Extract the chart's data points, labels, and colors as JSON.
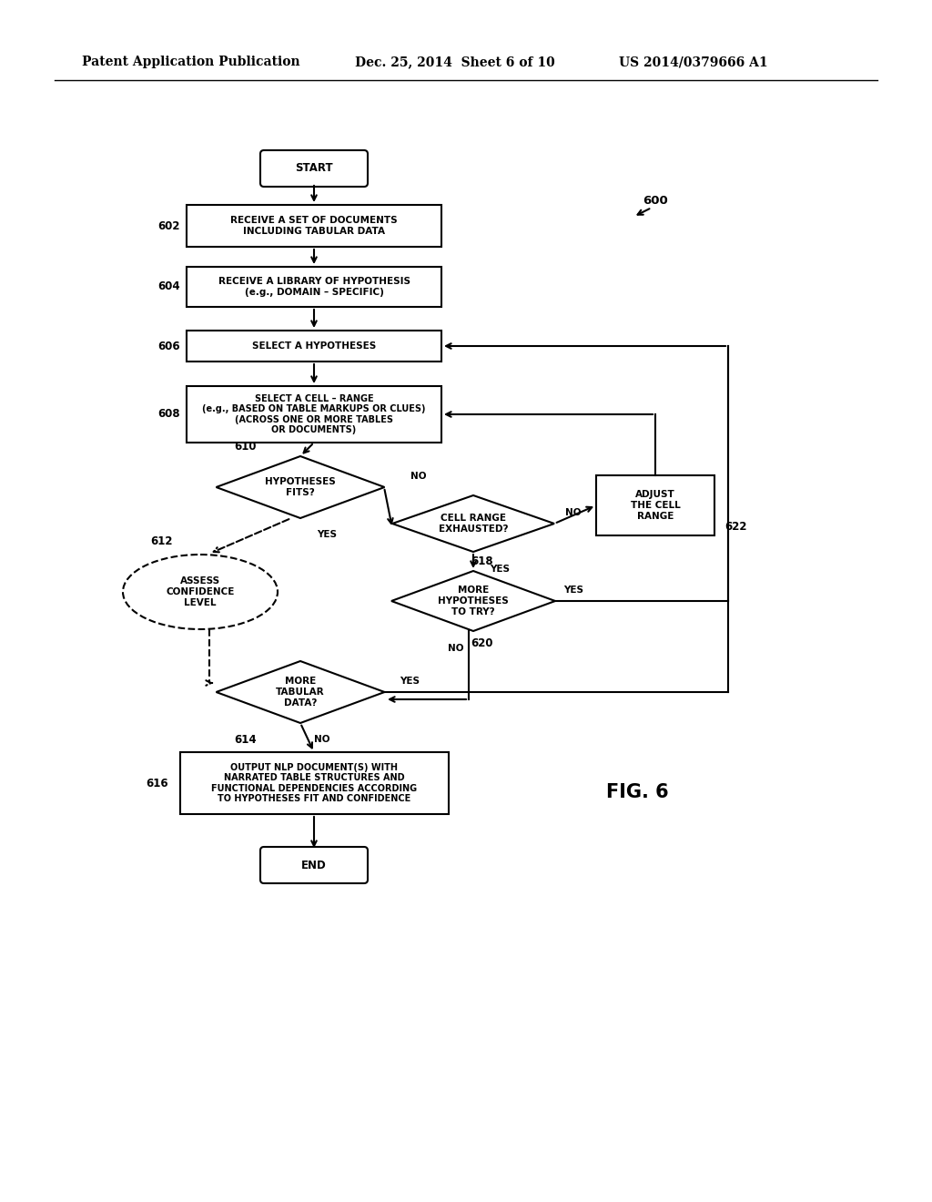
{
  "bg_color": "#ffffff",
  "header_left": "Patent Application Publication",
  "header_mid": "Dec. 25, 2014  Sheet 6 of 10",
  "header_right": "US 2014/0379666 A1",
  "fig_label": "FIG. 6",
  "fig_number": "600",
  "font_size_box": 7.0,
  "font_size_label": 8.5,
  "font_size_header": 10.0,
  "font_size_fig": 15
}
